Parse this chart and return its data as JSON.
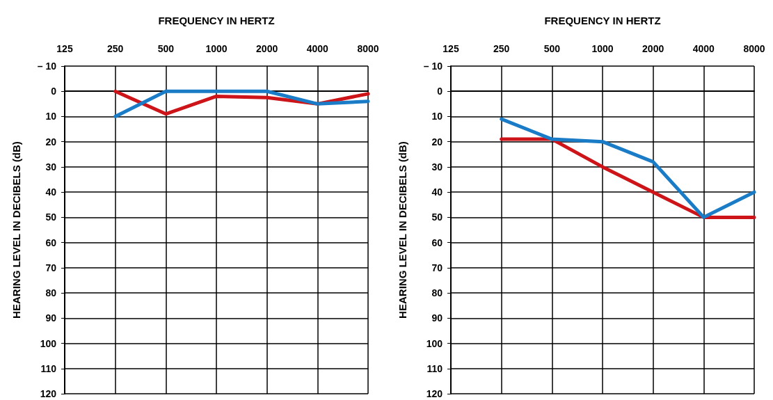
{
  "chart_data": [
    {
      "type": "line",
      "xlabel": "FREQUENCY IN HERTZ",
      "ylabel": "HEARING LEVEL IN DECIBELS (dB)",
      "categories": [
        "125",
        "250",
        "500",
        "1000",
        "2000",
        "4000",
        "8000"
      ],
      "series": [
        {
          "color": "#cc1419",
          "values": [
            null,
            0,
            9,
            2,
            2.5,
            5,
            1
          ]
        },
        {
          "color": "#1a7cc6",
          "values": [
            null,
            10,
            0,
            0,
            0,
            5,
            4
          ]
        }
      ],
      "ylim": [
        120,
        -10
      ],
      "yticks": [
        {
          "value": -10,
          "label": "– 10"
        },
        0,
        10,
        20,
        30,
        40,
        50,
        60,
        70,
        80,
        90,
        100,
        110,
        120
      ],
      "grid": true,
      "marker": "none",
      "line_style": "solid"
    },
    {
      "type": "line",
      "xlabel": "FREQUENCY IN HERTZ",
      "ylabel": "HEARING LEVEL IN DECIBELS (dB)",
      "categories": [
        "125",
        "250",
        "500",
        "1000",
        "2000",
        "4000",
        "8000"
      ],
      "series": [
        {
          "color": "#cc1419",
          "values": [
            null,
            19,
            19,
            30,
            40,
            50,
            50
          ]
        },
        {
          "color": "#1a7cc6",
          "values": [
            null,
            11,
            19,
            20,
            28,
            50,
            40
          ]
        }
      ],
      "ylim": [
        120,
        -10
      ],
      "yticks": [
        {
          "value": -10,
          "label": "– 10"
        },
        0,
        10,
        20,
        30,
        40,
        50,
        60,
        70,
        80,
        90,
        100,
        110,
        120
      ],
      "grid": true,
      "marker": "none",
      "line_style": "solid"
    }
  ]
}
